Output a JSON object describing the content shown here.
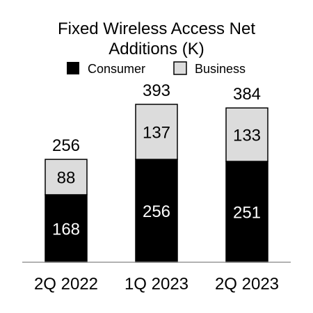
{
  "chart_data": {
    "type": "bar",
    "stacked": true,
    "title": [
      "Fixed Wireless Access Net",
      "Additions (K)"
    ],
    "xlabel": "",
    "ylabel": "",
    "ylim": [
      0,
      400
    ],
    "grid": false,
    "legend_position": "top",
    "categories": [
      "2Q 2022",
      "1Q 2023",
      "2Q 2023"
    ],
    "series": [
      {
        "name": "Consumer",
        "values": [
          168,
          256,
          251
        ],
        "color": "#000000",
        "label_color": "#ffffff"
      },
      {
        "name": "Business",
        "values": [
          88,
          137,
          133
        ],
        "color": "#dcdcdc",
        "label_color": "#000000"
      }
    ],
    "totals": [
      256,
      393,
      384
    ]
  }
}
